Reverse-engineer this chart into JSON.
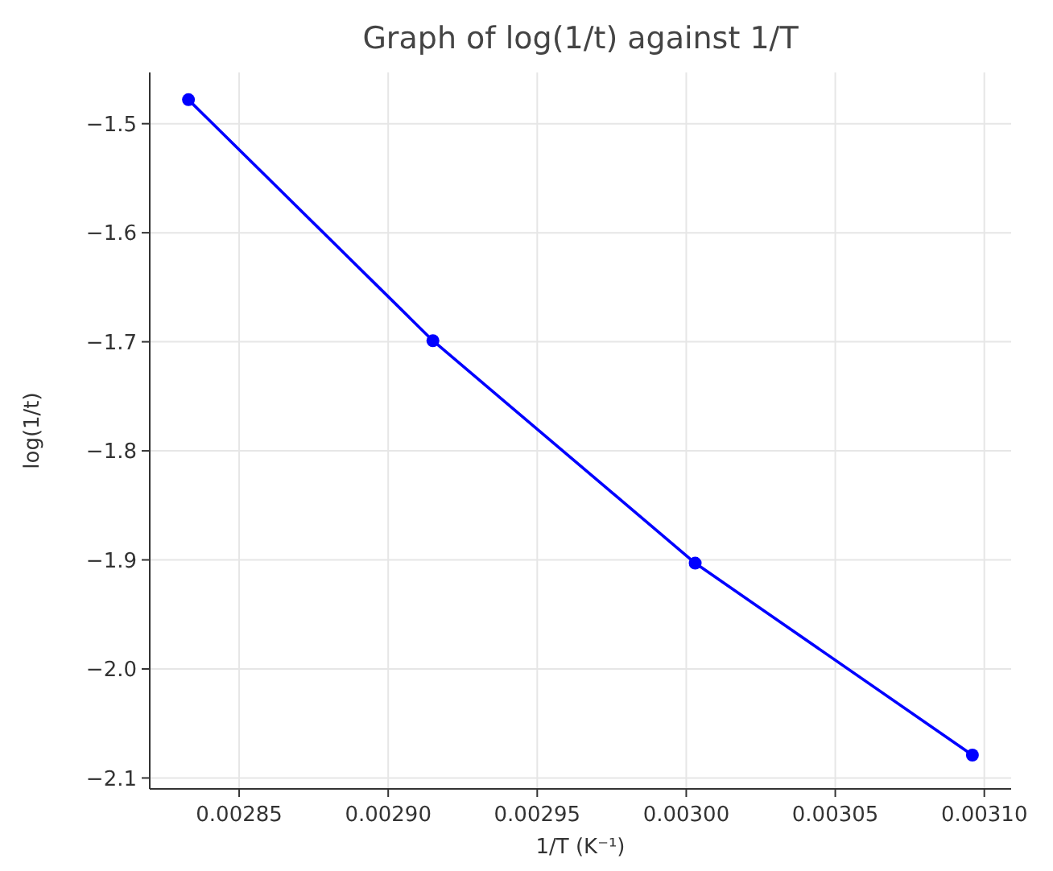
{
  "chart_data": {
    "type": "line",
    "title": "Graph of log(1/t) against 1/T",
    "xlabel": "1/T (K⁻¹)",
    "ylabel": "log(1/t)",
    "x": [
      0.002833,
      0.002915,
      0.003003,
      0.003096
    ],
    "series": [
      {
        "color": "#0000ff",
        "values": [
          -1.478,
          -1.699,
          -1.903,
          -2.079
        ]
      }
    ],
    "xlim": [
      0.00282,
      0.003109
    ],
    "ylim": [
      -2.11,
      -1.453
    ],
    "xticks": [
      {
        "value": 0.00285,
        "label": "0.00285"
      },
      {
        "value": 0.0029,
        "label": "0.00290"
      },
      {
        "value": 0.00295,
        "label": "0.00295"
      },
      {
        "value": 0.003,
        "label": "0.00300"
      },
      {
        "value": 0.00305,
        "label": "0.00305"
      },
      {
        "value": 0.0031,
        "label": "0.00310"
      }
    ],
    "yticks": [
      {
        "value": -1.5,
        "label": "−1.5"
      },
      {
        "value": -1.6,
        "label": "−1.6"
      },
      {
        "value": -1.7,
        "label": "−1.7"
      },
      {
        "value": -1.8,
        "label": "−1.8"
      },
      {
        "value": -1.9,
        "label": "−1.9"
      },
      {
        "value": -2.0,
        "label": "−2.0"
      },
      {
        "value": -2.1,
        "label": "−2.1"
      }
    ],
    "grid": true,
    "marker": "circle",
    "line_style": "solid"
  }
}
